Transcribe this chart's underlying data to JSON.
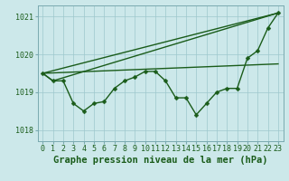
{
  "background_color": "#cce8ea",
  "grid_color": "#9ec8cc",
  "line_color": "#1a5c1a",
  "title": "Graphe pression niveau de la mer (hPa)",
  "xlim": [
    -0.5,
    23.5
  ],
  "ylim": [
    1017.7,
    1021.3
  ],
  "yticks": [
    1018,
    1019,
    1020,
    1021
  ],
  "xticks": [
    0,
    1,
    2,
    3,
    4,
    5,
    6,
    7,
    8,
    9,
    10,
    11,
    12,
    13,
    14,
    15,
    16,
    17,
    18,
    19,
    20,
    21,
    22,
    23
  ],
  "jagged_x": [
    0,
    1,
    2,
    3,
    4,
    5,
    6,
    7,
    8,
    9,
    10,
    11,
    12,
    13,
    14,
    15,
    16,
    17,
    18,
    19,
    20,
    21,
    22,
    23
  ],
  "jagged_y": [
    1019.5,
    1019.3,
    1019.3,
    1018.7,
    1018.5,
    1018.7,
    1018.75,
    1019.1,
    1019.3,
    1019.4,
    1019.55,
    1019.55,
    1019.3,
    1018.85,
    1018.85,
    1018.4,
    1018.7,
    1019.0,
    1019.1,
    1019.1,
    1019.9,
    1020.1,
    1020.7,
    1021.1
  ],
  "line1_x": [
    0,
    23
  ],
  "line1_y": [
    1019.5,
    1021.1
  ],
  "line2_x": [
    0,
    1,
    23
  ],
  "line2_y": [
    1019.5,
    1019.3,
    1021.1
  ],
  "line3_x": [
    0,
    23
  ],
  "line3_y": [
    1019.5,
    1019.75
  ],
  "marker_size": 2.5,
  "line_width": 1.0,
  "title_fontsize": 7.5,
  "tick_fontsize": 6
}
